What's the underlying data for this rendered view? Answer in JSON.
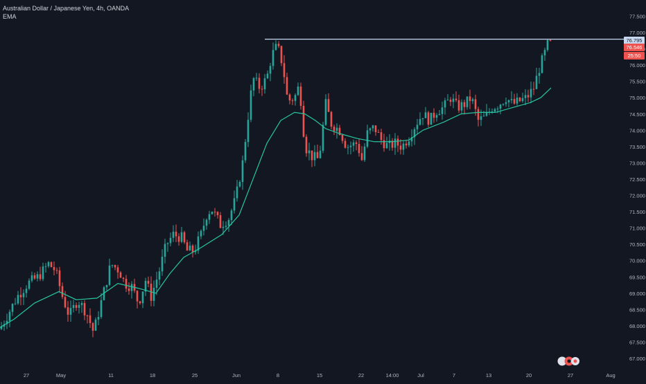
{
  "legend": {
    "symbol": "Australian Dollar / Japanese Yen, 4h, OANDA",
    "indicator": "EMA"
  },
  "colors": {
    "background": "#131722",
    "up": "#26a69a",
    "down": "#ef5350",
    "ema": "#26c6a0",
    "hline": "#c8d8f0",
    "grid_text": "#b2b5be"
  },
  "price_labels": {
    "hline_value": "76.795",
    "last_price": "76.546",
    "countdown": "25:50"
  },
  "chart_data": {
    "type": "candlestick",
    "title": "Australian Dollar / Japanese Yen, 4h, OANDA",
    "y_axis_ticks": [
      "67.000",
      "67.500",
      "68.000",
      "68.500",
      "69.000",
      "69.500",
      "70.000",
      "70.500",
      "71.000",
      "71.500",
      "72.000",
      "72.500",
      "73.000",
      "73.500",
      "74.000",
      "74.500",
      "75.000",
      "75.500",
      "76.000",
      "76.500",
      "77.000",
      "77.500"
    ],
    "x_axis_ticks": [
      "27",
      "May",
      "11",
      "18",
      "25",
      "Jun",
      "8",
      "15",
      "22",
      "14:00",
      "Jul",
      "7",
      "13",
      "20",
      "27",
      "Aug"
    ],
    "ylim": [
      66.8,
      77.8
    ],
    "horizontal_line": 76.795,
    "last_price": 76.546,
    "countdown": "25:50",
    "ema_path": [
      [
        0,
        67.95
      ],
      [
        20,
        68.2
      ],
      [
        50,
        68.7
      ],
      [
        85,
        69.05
      ],
      [
        110,
        68.8
      ],
      [
        140,
        68.85
      ],
      [
        170,
        69.3
      ],
      [
        200,
        69.15
      ],
      [
        225,
        69.0
      ],
      [
        245,
        69.6
      ],
      [
        265,
        70.1
      ],
      [
        290,
        70.4
      ],
      [
        320,
        70.8
      ],
      [
        345,
        71.4
      ],
      [
        365,
        72.5
      ],
      [
        385,
        73.6
      ],
      [
        405,
        74.3
      ],
      [
        425,
        74.55
      ],
      [
        440,
        74.5
      ],
      [
        455,
        74.3
      ],
      [
        470,
        74.05
      ],
      [
        490,
        73.9
      ],
      [
        515,
        73.75
      ],
      [
        540,
        73.65
      ],
      [
        565,
        73.65
      ],
      [
        590,
        73.7
      ],
      [
        610,
        74.0
      ],
      [
        640,
        74.25
      ],
      [
        665,
        74.5
      ],
      [
        690,
        74.55
      ],
      [
        715,
        74.55
      ],
      [
        740,
        74.7
      ],
      [
        765,
        74.85
      ],
      [
        780,
        75.0
      ],
      [
        795,
        75.3
      ]
    ],
    "price_path": [
      [
        0,
        67.9
      ],
      [
        10,
        68.3
      ],
      [
        25,
        68.9
      ],
      [
        40,
        69.3
      ],
      [
        55,
        69.5
      ],
      [
        70,
        69.9
      ],
      [
        80,
        69.7
      ],
      [
        90,
        68.9
      ],
      [
        100,
        68.3
      ],
      [
        112,
        68.8
      ],
      [
        125,
        68.4
      ],
      [
        135,
        67.8
      ],
      [
        148,
        68.9
      ],
      [
        160,
        69.9
      ],
      [
        172,
        69.7
      ],
      [
        180,
        69.3
      ],
      [
        190,
        69.2
      ],
      [
        200,
        68.7
      ],
      [
        210,
        69.4
      ],
      [
        218,
        68.9
      ],
      [
        230,
        69.7
      ],
      [
        240,
        70.5
      ],
      [
        250,
        70.8
      ],
      [
        262,
        70.7
      ],
      [
        270,
        70.3
      ],
      [
        280,
        70.3
      ],
      [
        290,
        70.8
      ],
      [
        298,
        71.4
      ],
      [
        305,
        71.6
      ],
      [
        318,
        71.1
      ],
      [
        330,
        71.3
      ],
      [
        340,
        71.9
      ],
      [
        350,
        73.0
      ],
      [
        360,
        74.8
      ],
      [
        365,
        75.6
      ],
      [
        375,
        75.3
      ],
      [
        385,
        75.6
      ],
      [
        392,
        76.3
      ],
      [
        400,
        76.6
      ],
      [
        408,
        76.0
      ],
      [
        415,
        74.9
      ],
      [
        425,
        75.0
      ],
      [
        432,
        75.4
      ],
      [
        440,
        73.5
      ],
      [
        450,
        73.2
      ],
      [
        460,
        73.1
      ],
      [
        470,
        74.8
      ],
      [
        478,
        74.2
      ],
      [
        490,
        74.0
      ],
      [
        500,
        73.5
      ],
      [
        515,
        73.6
      ],
      [
        522,
        73.1
      ],
      [
        530,
        73.9
      ],
      [
        540,
        74.1
      ],
      [
        550,
        73.7
      ],
      [
        560,
        73.5
      ],
      [
        570,
        73.6
      ],
      [
        580,
        73.5
      ],
      [
        590,
        73.8
      ],
      [
        600,
        74.2
      ],
      [
        610,
        74.5
      ],
      [
        620,
        74.3
      ],
      [
        630,
        74.6
      ],
      [
        640,
        74.7
      ],
      [
        650,
        75.0
      ],
      [
        660,
        74.7
      ],
      [
        670,
        74.8
      ],
      [
        680,
        75.0
      ],
      [
        690,
        74.3
      ],
      [
        700,
        74.4
      ],
      [
        710,
        74.7
      ],
      [
        720,
        74.8
      ],
      [
        730,
        75.0
      ],
      [
        740,
        74.8
      ],
      [
        750,
        74.9
      ],
      [
        760,
        75.0
      ],
      [
        770,
        75.3
      ],
      [
        778,
        75.9
      ],
      [
        785,
        76.3
      ],
      [
        792,
        76.75
      ],
      [
        796,
        76.55
      ]
    ]
  }
}
